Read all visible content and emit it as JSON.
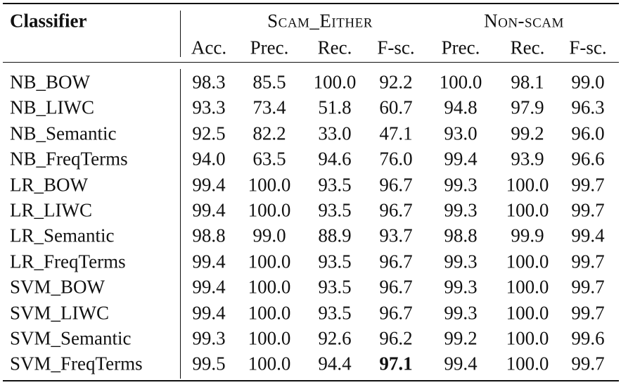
{
  "table": {
    "corner": "Classifier",
    "groups": [
      "Scam_Either",
      "Non-scam"
    ],
    "columns": [
      "Acc.",
      "Prec.",
      "Rec.",
      "F-sc.",
      "Prec.",
      "Rec.",
      "F-sc."
    ],
    "rows": [
      [
        "NB_BOW",
        "98.3",
        "85.5",
        "100.0",
        "92.2",
        "100.0",
        "98.1",
        "99.0"
      ],
      [
        "NB_LIWC",
        "93.3",
        "73.4",
        "51.8",
        "60.7",
        "94.8",
        "97.9",
        "96.3"
      ],
      [
        "NB_Semantic",
        "92.5",
        "82.2",
        "33.0",
        "47.1",
        "93.0",
        "99.2",
        "96.0"
      ],
      [
        "NB_FreqTerms",
        "94.0",
        "63.5",
        "94.6",
        "76.0",
        "99.4",
        "93.9",
        "96.6"
      ],
      [
        "LR_BOW",
        "99.4",
        "100.0",
        "93.5",
        "96.7",
        "99.3",
        "100.0",
        "99.7"
      ],
      [
        "LR_LIWC",
        "99.4",
        "100.0",
        "93.5",
        "96.7",
        "99.3",
        "100.0",
        "99.7"
      ],
      [
        "LR_Semantic",
        "98.8",
        "99.0",
        "88.9",
        "93.7",
        "98.8",
        "99.9",
        "99.4"
      ],
      [
        "LR_FreqTerms",
        "99.4",
        "100.0",
        "93.5",
        "96.7",
        "99.3",
        "100.0",
        "99.7"
      ],
      [
        "SVM_BOW",
        "99.4",
        "100.0",
        "93.5",
        "96.7",
        "99.3",
        "100.0",
        "99.7"
      ],
      [
        "SVM_LIWC",
        "99.4",
        "100.0",
        "93.5",
        "96.7",
        "99.3",
        "100.0",
        "99.7"
      ],
      [
        "SVM_Semantic",
        "99.3",
        "100.0",
        "92.6",
        "96.2",
        "99.2",
        "100.0",
        "99.6"
      ],
      [
        "SVM_FreqTerms",
        "99.5",
        "100.0",
        "94.4",
        "97.1",
        "99.4",
        "100.0",
        "99.7"
      ]
    ],
    "bold_cells": [
      [
        11,
        4
      ]
    ]
  }
}
